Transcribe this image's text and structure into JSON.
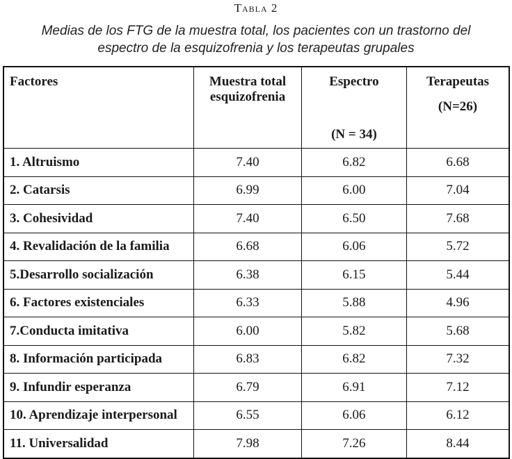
{
  "table_label": "Tabla 2",
  "caption_line1": "Medias de los FTG de la muestra total, los pacientes con un trastorno del",
  "caption_line2": "espectro de la esquizofrenia y los terapeutas grupales",
  "headers": {
    "factores": "Factores",
    "muestra_line1": "Muestra total",
    "muestra_line2": "esquizofrenia",
    "espectro": "Espectro",
    "espectro_n": "(N = 34)",
    "terapeutas": "Terapeutas",
    "terapeutas_n": "(N=26)"
  },
  "rows": [
    {
      "factor": "1. Altruismo",
      "muestra": "7.40",
      "espectro": "6.82",
      "terapeutas": "6.68"
    },
    {
      "factor": "2. Catarsis",
      "muestra": "6.99",
      "espectro": "6.00",
      "terapeutas": "7.04"
    },
    {
      "factor": "3. Cohesividad",
      "muestra": "7.40",
      "espectro": "6.50",
      "terapeutas": "7.68"
    },
    {
      "factor": "4. Revalidación de la familia",
      "muestra": "6.68",
      "espectro": "6.06",
      "terapeutas": "5.72"
    },
    {
      "factor": "5.Desarrollo socialización",
      "muestra": "6.38",
      "espectro": "6.15",
      "terapeutas": "5.44"
    },
    {
      "factor": "6. Factores existenciales",
      "muestra": "6.33",
      "espectro": "5.88",
      "terapeutas": "4.96"
    },
    {
      "factor": "7.Conducta imitativa",
      "muestra": "6.00",
      "espectro": "5.82",
      "terapeutas": "5.68"
    },
    {
      "factor": "8. Información participada",
      "muestra": "6.83",
      "espectro": "6.82",
      "terapeutas": "7.32"
    },
    {
      "factor": "9. Infundir esperanza",
      "muestra": "6.79",
      "espectro": "6.91",
      "terapeutas": "7.12"
    },
    {
      "factor": "10. Aprendizaje interpersonal",
      "muestra": "6.55",
      "espectro": "6.06",
      "terapeutas": "6.12"
    },
    {
      "factor": "11. Universalidad",
      "muestra": "7.98",
      "espectro": "7.26",
      "terapeutas": "8.44"
    }
  ]
}
